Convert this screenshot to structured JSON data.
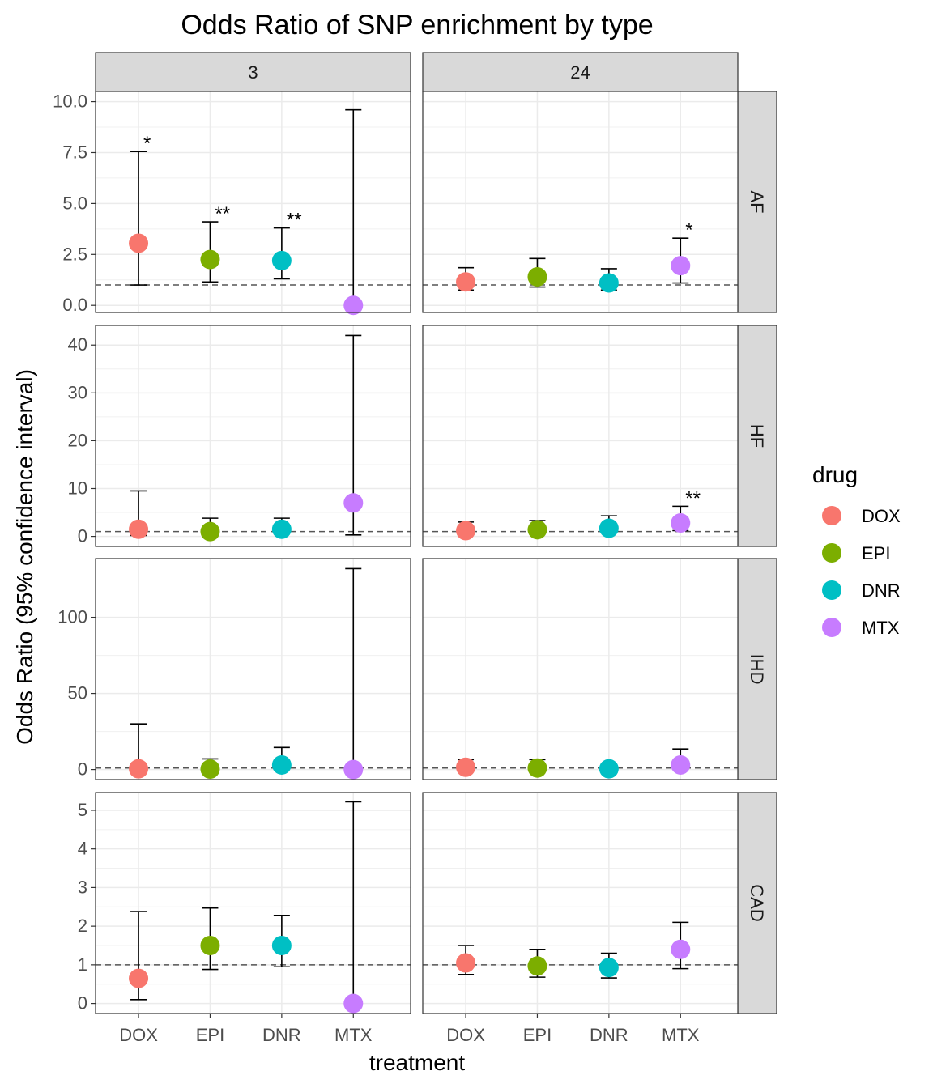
{
  "chart_data": {
    "type": "scatter",
    "title": "Odds Ratio of SNP enrichment by type",
    "xlabel": "treatment",
    "ylabel": "Odds Ratio (95% confidence interval)",
    "categories": [
      "DOX",
      "EPI",
      "DNR",
      "MTX"
    ],
    "columns": [
      "3",
      "24"
    ],
    "rows": [
      "AF",
      "HF",
      "IHD",
      "CAD"
    ],
    "reference_line": 1,
    "legend": {
      "title": "drug",
      "placement": "right",
      "items": [
        {
          "label": "DOX",
          "color": "#F8766D"
        },
        {
          "label": "EPI",
          "color": "#7CAE00"
        },
        {
          "label": "DNR",
          "color": "#00BFC4"
        },
        {
          "label": "MTX",
          "color": "#C77CFF"
        }
      ]
    },
    "y_axes": {
      "AF": {
        "ylim": [
          -0.35,
          10.5
        ],
        "ticks": [
          "0.0",
          "2.5",
          "5.0",
          "7.5",
          "10.0"
        ],
        "tick_values": [
          0,
          2.5,
          5,
          7.5,
          10
        ]
      },
      "HF": {
        "ylim": [
          -2.1,
          44.1
        ],
        "ticks": [
          "0",
          "10",
          "20",
          "30",
          "40"
        ],
        "tick_values": [
          0,
          10,
          20,
          30,
          40
        ]
      },
      "IHD": {
        "ylim": [
          -6.6,
          138.6
        ],
        "ticks": [
          "0",
          "50",
          "100"
        ],
        "tick_values": [
          0,
          50,
          100
        ]
      },
      "CAD": {
        "ylim": [
          -0.26,
          5.46
        ],
        "ticks": [
          "0",
          "1",
          "2",
          "3",
          "4",
          "5"
        ],
        "tick_values": [
          0,
          1,
          2,
          3,
          4,
          5
        ]
      }
    },
    "panels": [
      {
        "row": "AF",
        "col": "3",
        "points": [
          {
            "drug": "DOX",
            "or": 3.05,
            "lo": 1.0,
            "hi": 7.55,
            "sig": "*"
          },
          {
            "drug": "EPI",
            "or": 2.25,
            "lo": 1.15,
            "hi": 4.1,
            "sig": "**"
          },
          {
            "drug": "DNR",
            "or": 2.2,
            "lo": 1.3,
            "hi": 3.8,
            "sig": "**"
          },
          {
            "drug": "MTX",
            "or": 0.0,
            "lo": 0.0,
            "hi": 9.6,
            "sig": ""
          }
        ]
      },
      {
        "row": "AF",
        "col": "24",
        "points": [
          {
            "drug": "DOX",
            "or": 1.15,
            "lo": 0.75,
            "hi": 1.85,
            "sig": ""
          },
          {
            "drug": "EPI",
            "or": 1.4,
            "lo": 0.9,
            "hi": 2.3,
            "sig": ""
          },
          {
            "drug": "DNR",
            "or": 1.1,
            "lo": 0.75,
            "hi": 1.8,
            "sig": ""
          },
          {
            "drug": "MTX",
            "or": 1.95,
            "lo": 1.1,
            "hi": 3.3,
            "sig": "*"
          }
        ]
      },
      {
        "row": "HF",
        "col": "3",
        "points": [
          {
            "drug": "DOX",
            "or": 1.5,
            "lo": 0.2,
            "hi": 9.5,
            "sig": ""
          },
          {
            "drug": "EPI",
            "or": 1.0,
            "lo": 0.2,
            "hi": 3.8,
            "sig": ""
          },
          {
            "drug": "DNR",
            "or": 1.5,
            "lo": 0.6,
            "hi": 3.8,
            "sig": ""
          },
          {
            "drug": "MTX",
            "or": 7.0,
            "lo": 0.3,
            "hi": 42.0,
            "sig": ""
          }
        ]
      },
      {
        "row": "HF",
        "col": "24",
        "points": [
          {
            "drug": "DOX",
            "or": 1.2,
            "lo": 0.4,
            "hi": 3.0,
            "sig": ""
          },
          {
            "drug": "EPI",
            "or": 1.4,
            "lo": 0.5,
            "hi": 3.3,
            "sig": ""
          },
          {
            "drug": "DNR",
            "or": 1.7,
            "lo": 0.8,
            "hi": 4.3,
            "sig": ""
          },
          {
            "drug": "MTX",
            "or": 2.8,
            "lo": 1.2,
            "hi": 6.3,
            "sig": "**"
          }
        ]
      },
      {
        "row": "IHD",
        "col": "3",
        "points": [
          {
            "drug": "DOX",
            "or": 0.5,
            "lo": 0.0,
            "hi": 30.0,
            "sig": ""
          },
          {
            "drug": "EPI",
            "or": 0.3,
            "lo": 0.0,
            "hi": 7.0,
            "sig": ""
          },
          {
            "drug": "DNR",
            "or": 3.0,
            "lo": 0.6,
            "hi": 14.5,
            "sig": ""
          },
          {
            "drug": "MTX",
            "or": 0.0,
            "lo": 0.0,
            "hi": 132.0,
            "sig": ""
          }
        ]
      },
      {
        "row": "IHD",
        "col": "24",
        "points": [
          {
            "drug": "DOX",
            "or": 1.5,
            "lo": 0.3,
            "hi": 6.5,
            "sig": ""
          },
          {
            "drug": "EPI",
            "or": 1.0,
            "lo": 0.2,
            "hi": 6.5,
            "sig": ""
          },
          {
            "drug": "DNR",
            "or": 0.5,
            "lo": 0.1,
            "hi": 4.0,
            "sig": ""
          },
          {
            "drug": "MTX",
            "or": 3.0,
            "lo": 0.4,
            "hi": 13.5,
            "sig": ""
          }
        ]
      },
      {
        "row": "CAD",
        "col": "3",
        "points": [
          {
            "drug": "DOX",
            "or": 0.65,
            "lo": 0.1,
            "hi": 2.38,
            "sig": ""
          },
          {
            "drug": "EPI",
            "or": 1.5,
            "lo": 0.88,
            "hi": 2.47,
            "sig": ""
          },
          {
            "drug": "DNR",
            "or": 1.5,
            "lo": 0.95,
            "hi": 2.28,
            "sig": ""
          },
          {
            "drug": "MTX",
            "or": 0.0,
            "lo": 0.0,
            "hi": 5.22,
            "sig": ""
          }
        ]
      },
      {
        "row": "CAD",
        "col": "24",
        "points": [
          {
            "drug": "DOX",
            "or": 1.05,
            "lo": 0.75,
            "hi": 1.5,
            "sig": ""
          },
          {
            "drug": "EPI",
            "or": 0.97,
            "lo": 0.68,
            "hi": 1.4,
            "sig": ""
          },
          {
            "drug": "DNR",
            "or": 0.93,
            "lo": 0.66,
            "hi": 1.3,
            "sig": ""
          },
          {
            "drug": "MTX",
            "or": 1.4,
            "lo": 0.9,
            "hi": 2.1,
            "sig": ""
          }
        ]
      }
    ]
  }
}
